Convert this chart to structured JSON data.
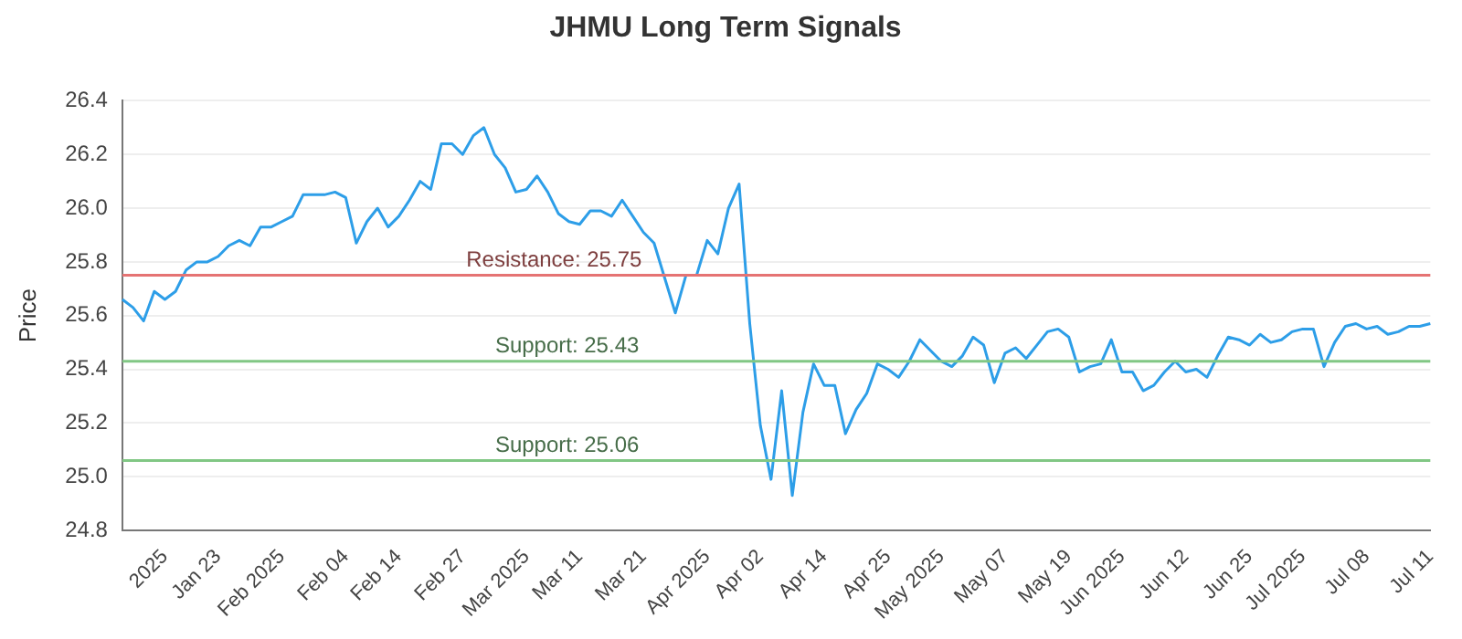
{
  "chart_data": {
    "type": "line",
    "title": "JHMU Long Term Signals",
    "ylabel": "Price",
    "categories": [
      null,
      null,
      null,
      null,
      "2025",
      null,
      null,
      null,
      null,
      "Jan 23",
      null,
      null,
      null,
      null,
      null,
      "Feb 2025",
      null,
      null,
      null,
      null,
      null,
      "Feb 04",
      null,
      null,
      null,
      null,
      "Feb 14",
      null,
      null,
      null,
      null,
      null,
      "Feb 27",
      null,
      null,
      null,
      null,
      null,
      "Mar 2025",
      null,
      null,
      null,
      null,
      "Mar 11",
      null,
      null,
      null,
      null,
      null,
      "Mar 21",
      null,
      null,
      null,
      null,
      null,
      "Apr 2025",
      null,
      null,
      null,
      null,
      "Apr 02",
      null,
      null,
      null,
      null,
      null,
      "Apr 14",
      null,
      null,
      null,
      null,
      null,
      "Apr 25",
      null,
      null,
      null,
      null,
      "May 2025",
      null,
      null,
      null,
      null,
      null,
      "May 07",
      null,
      null,
      null,
      null,
      null,
      "May 19",
      null,
      null,
      null,
      null,
      "Jun 2025",
      null,
      null,
      null,
      null,
      null,
      "Jun 12",
      null,
      null,
      null,
      null,
      null,
      "Jun 25",
      null,
      null,
      null,
      null,
      "Jul 2025",
      null,
      null,
      null,
      null,
      null,
      "Jul 08",
      null,
      null,
      null,
      null,
      null,
      "Jul 11"
    ],
    "series": [
      {
        "color": "#2d9ee8",
        "values": [
          25.66,
          25.63,
          25.58,
          25.69,
          25.66,
          25.69,
          25.77,
          25.8,
          25.8,
          25.82,
          25.86,
          25.88,
          25.86,
          25.93,
          25.93,
          25.95,
          25.97,
          26.05,
          26.05,
          26.05,
          26.06,
          26.04,
          25.87,
          25.95,
          26.0,
          25.93,
          25.97,
          26.03,
          26.1,
          26.07,
          26.24,
          26.24,
          26.2,
          26.27,
          26.3,
          26.2,
          26.15,
          26.06,
          26.07,
          26.12,
          26.06,
          25.98,
          25.95,
          25.94,
          25.99,
          25.99,
          25.97,
          26.03,
          25.97,
          25.91,
          25.87,
          25.74,
          25.61,
          25.75,
          25.75,
          25.88,
          25.83,
          26.0,
          26.09,
          25.57,
          25.19,
          24.99,
          25.32,
          24.93,
          25.24,
          25.42,
          25.34,
          25.34,
          25.16,
          25.25,
          25.31,
          25.42,
          25.4,
          25.37,
          25.43,
          25.51,
          25.47,
          25.43,
          25.41,
          25.45,
          25.52,
          25.49,
          25.35,
          25.46,
          25.48,
          25.44,
          25.49,
          25.54,
          25.55,
          25.52,
          25.39,
          25.41,
          25.42,
          25.51,
          25.39,
          25.39,
          25.32,
          25.34,
          25.39,
          25.43,
          25.39,
          25.4,
          25.37,
          25.45,
          25.52,
          25.51,
          25.49,
          25.53,
          25.5,
          25.51,
          25.54,
          25.55,
          25.55,
          25.41,
          25.5,
          25.56,
          25.57,
          25.55,
          25.56,
          25.53,
          25.54,
          25.56,
          25.56,
          25.57
        ]
      }
    ],
    "ylim": [
      24.8,
      26.4
    ],
    "yticks": [
      24.8,
      {
        "value": 25,
        "label": "25.0"
      },
      25.2,
      25.4,
      25.6,
      25.8,
      {
        "value": 26,
        "label": "26.0"
      },
      26.2,
      26.4
    ],
    "grid": "y",
    "marker": "none",
    "line_style": "solid",
    "ref_lines": [
      {
        "axis": "y",
        "value": 25.75,
        "label": "Resistance: 25.75",
        "color": "#e57373"
      },
      {
        "axis": "y",
        "value": 25.43,
        "label": "Support: 25.43",
        "color": "#81c784"
      },
      {
        "axis": "y",
        "value": 25.06,
        "label": "Support: 25.06",
        "color": "#81c784"
      }
    ]
  }
}
